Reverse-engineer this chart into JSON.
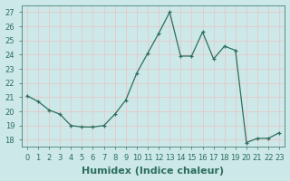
{
  "x": [
    0,
    1,
    2,
    3,
    4,
    5,
    6,
    7,
    8,
    9,
    10,
    11,
    12,
    13,
    14,
    15,
    16,
    17,
    18,
    19,
    20,
    21,
    22,
    23
  ],
  "y": [
    21.1,
    20.7,
    20.1,
    19.8,
    19.0,
    18.9,
    18.9,
    19.0,
    19.8,
    20.8,
    22.7,
    24.1,
    25.5,
    27.0,
    23.9,
    23.9,
    25.6,
    23.7,
    24.6,
    24.3,
    17.8,
    18.1,
    18.1,
    18.5
  ],
  "xlabel": "Humidex (Indice chaleur)",
  "ylim": [
    17.5,
    27.5
  ],
  "xlim": [
    -0.5,
    23.5
  ],
  "yticks": [
    18,
    19,
    20,
    21,
    22,
    23,
    24,
    25,
    26,
    27
  ],
  "xticks": [
    0,
    1,
    2,
    3,
    4,
    5,
    6,
    7,
    8,
    9,
    10,
    11,
    12,
    13,
    14,
    15,
    16,
    17,
    18,
    19,
    20,
    21,
    22,
    23
  ],
  "line_color": "#2d6e5e",
  "marker": "+",
  "bg_color": "#cce8e8",
  "grid_color": "#e8c8c8",
  "tick_fontsize": 6,
  "xlabel_fontsize": 8
}
